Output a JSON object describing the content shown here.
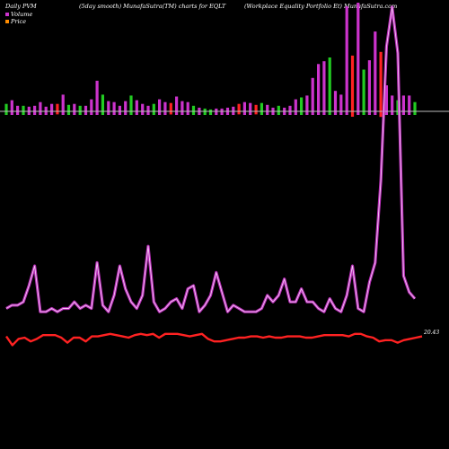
{
  "header": {
    "left": "Daily PVM",
    "mid": "(5day smooth) MunafaSutra(TM) charts for EQLT",
    "right": "(Workplace  Equality Portfolio  Et) MunafaSutra.com"
  },
  "legend": {
    "volume": "Volume",
    "price": "Price"
  },
  "colors": {
    "up_bar": "#cc33cc",
    "down_bar": "#ff2222",
    "green_bar": "#22cc22",
    "volume_line": "#cc33cc",
    "price_line": "#ff2222",
    "background": "#000000",
    "axis": "#bbbbbb"
  },
  "chart_data": {
    "type": "bar",
    "series": [
      {
        "name": "Volume",
        "bar_values": [
          8,
          12,
          6,
          6,
          5,
          6,
          10,
          5,
          8,
          8,
          18,
          7,
          8,
          6,
          6,
          13,
          33,
          18,
          11,
          10,
          6,
          11,
          17,
          12,
          8,
          6,
          8,
          13,
          10,
          9,
          16,
          11,
          10,
          6,
          4,
          3,
          2,
          3,
          3,
          4,
          5,
          8,
          10,
          9,
          7,
          9,
          7,
          4,
          6,
          4,
          6,
          13,
          15,
          17,
          36,
          51,
          54,
          58,
          22,
          18,
          113,
          60,
          117,
          45,
          55,
          86,
          64,
          28,
          17,
          12,
          17,
          17,
          10
        ],
        "bar_colors": [
          "g",
          "m",
          "m",
          "g",
          "m",
          "m",
          "m",
          "m",
          "m",
          "r",
          "m",
          "g",
          "m",
          "g",
          "m",
          "m",
          "m",
          "g",
          "m",
          "m",
          "m",
          "m",
          "g",
          "m",
          "m",
          "m",
          "g",
          "m",
          "m",
          "r",
          "m",
          "m",
          "m",
          "g",
          "m",
          "g",
          "g",
          "m",
          "m",
          "m",
          "m",
          "r",
          "m",
          "m",
          "r",
          "g",
          "m",
          "m",
          "g",
          "m",
          "m",
          "m",
          "g",
          "m",
          "m",
          "m",
          "m",
          "g",
          "m",
          "m",
          "m",
          "r",
          "m",
          "g",
          "m",
          "m",
          "r",
          "m",
          "m",
          "g",
          "m",
          "m",
          "g"
        ],
        "line_values": [
          10,
          11,
          11,
          12,
          17,
          23,
          9,
          9,
          10,
          9,
          10,
          10,
          12,
          10,
          11,
          10,
          24,
          11,
          9,
          14,
          23,
          16,
          12,
          10,
          14,
          29,
          12,
          9,
          10,
          12,
          13,
          10,
          16,
          17,
          9,
          11,
          14,
          21,
          15,
          9,
          11,
          10,
          9,
          9,
          9,
          10,
          14,
          12,
          14,
          19,
          12,
          12,
          16,
          12,
          12,
          10,
          9,
          13,
          10,
          9,
          14,
          23,
          10,
          9,
          18,
          24,
          49,
          90,
          102,
          88,
          20,
          15,
          13
        ]
      },
      {
        "name": "Price",
        "line_values": [
          20.1,
          19.4,
          19.9,
          20.0,
          19.7,
          19.9,
          20.2,
          20.2,
          20.2,
          20.0,
          19.6,
          20.0,
          20.0,
          19.7,
          20.1,
          20.1,
          20.2,
          20.3,
          20.2,
          20.1,
          20.0,
          20.2,
          20.3,
          20.2,
          20.3,
          20.0,
          20.3,
          20.3,
          20.3,
          20.2,
          20.1,
          20.2,
          20.3,
          19.9,
          19.7,
          19.7,
          19.8,
          19.9,
          20.0,
          20.0,
          20.1,
          20.1,
          20.0,
          20.1,
          20.0,
          20.0,
          20.1,
          20.1,
          20.1,
          20.0,
          20.0,
          20.1,
          20.2,
          20.2,
          20.2,
          20.2,
          20.1,
          20.3,
          20.3,
          20.1,
          20.0,
          19.7,
          19.8,
          19.8,
          19.6,
          19.8,
          19.9,
          20.0,
          20.1
        ]
      }
    ],
    "end_label": "20.43",
    "price_range": [
      19.0,
      21.0
    ]
  }
}
